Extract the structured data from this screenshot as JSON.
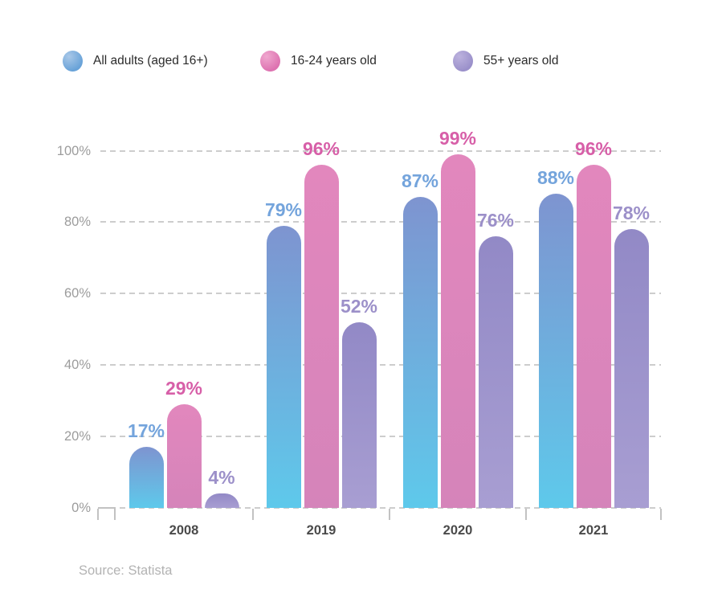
{
  "legend": {
    "items": [
      {
        "label": "All adults (aged 16+)"
      },
      {
        "label": "16-24 years old"
      },
      {
        "label": "55+ years old"
      }
    ]
  },
  "source": "Source: Statista",
  "chart_data": {
    "type": "bar",
    "title": "",
    "categories": [
      "2008",
      "2019",
      "2020",
      "2021"
    ],
    "series": [
      {
        "name": "All adults (aged 16+)",
        "values": [
          17,
          79,
          87,
          88
        ],
        "color_top": "#7E94D0",
        "color_bottom": "#5EC9EB",
        "label_color": "#74A4DC",
        "dot_light": "#A9C8E8",
        "dot_base": "#68A2D8"
      },
      {
        "name": "16-24 years old",
        "values": [
          29,
          96,
          99,
          96
        ],
        "color_top": "#E287BD",
        "color_bottom": "#D584BA",
        "label_color": "#D75FA8",
        "dot_light": "#F0A8CF",
        "dot_base": "#DD72B0"
      },
      {
        "name": "55+ years old",
        "values": [
          4,
          52,
          76,
          78
        ],
        "color_top": "#9289C6",
        "color_bottom": "#A89ED2",
        "label_color": "#9C90C9",
        "dot_light": "#BCB2DE",
        "dot_base": "#9A90CA"
      }
    ],
    "xlabel": "",
    "ylabel": "",
    "ylim": [
      0,
      100
    ],
    "yticks": [
      0,
      20,
      40,
      60,
      80,
      100
    ],
    "ytick_suffix": "%",
    "value_label_suffix": "%",
    "grid": "horizontal dashed",
    "legend_position": "top",
    "source": "Source: Statista"
  }
}
